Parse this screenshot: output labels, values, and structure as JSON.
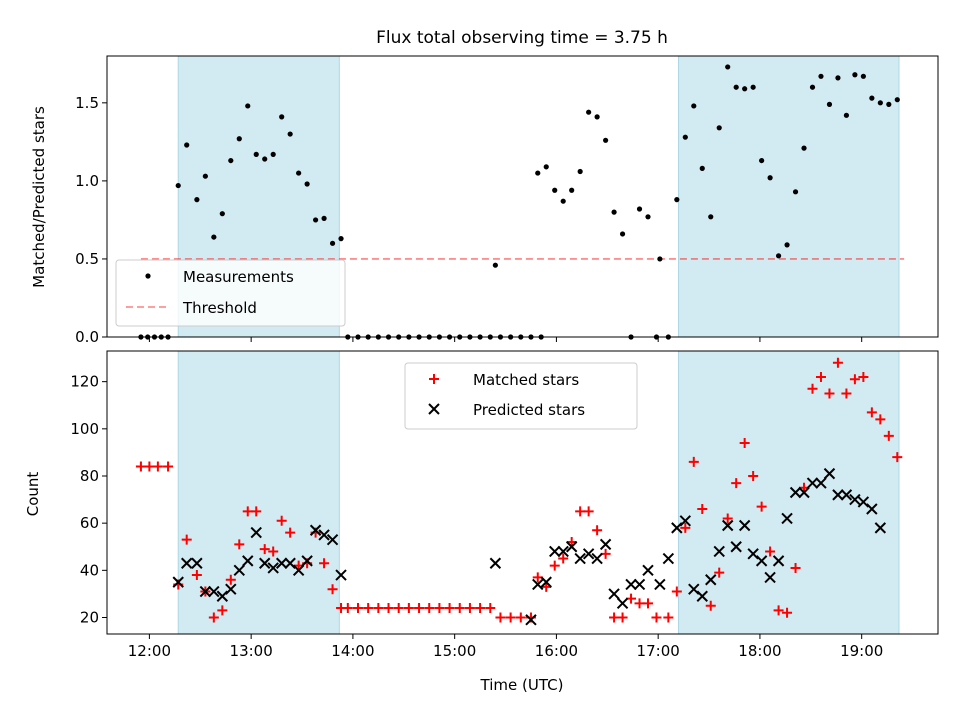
{
  "figure": {
    "title": "Flux total observing time = 3.75 h",
    "xlabel": "Time (UTC)"
  },
  "colors": {
    "shade": "#add8e6",
    "measurement": "#000000",
    "threshold": "#ff0000",
    "matched": "#ff0000",
    "predicted": "#000000",
    "axes": "#000000"
  },
  "chart_data": [
    {
      "type": "scatter",
      "ylabel": "Matched/Predicted stars",
      "ylim": [
        0,
        1.8
      ],
      "xlim": [
        "11:35",
        "19:45"
      ],
      "yticks": [
        0.0,
        0.5,
        1.0,
        1.5
      ],
      "ytick_labels": [
        "0.0",
        "0.5",
        "1.0",
        "1.5"
      ],
      "shaded_intervals": [
        [
          "12:17",
          "13:52"
        ],
        [
          "17:12",
          "19:22"
        ]
      ],
      "legend": {
        "placement": "lower-left",
        "entries": [
          "Measurements",
          "Threshold"
        ]
      },
      "threshold": {
        "name": "Threshold",
        "value": 0.5,
        "x_range": [
          "11:55",
          "19:25"
        ]
      },
      "series": [
        {
          "name": "Measurements",
          "points": [
            [
              "11:55",
              0
            ],
            [
              "11:59",
              0
            ],
            [
              "12:03",
              0
            ],
            [
              "12:07",
              0
            ],
            [
              "12:11",
              0
            ],
            [
              "12:17",
              0.97
            ],
            [
              "12:22",
              1.23
            ],
            [
              "12:28",
              0.88
            ],
            [
              "12:33",
              1.03
            ],
            [
              "12:38",
              0.64
            ],
            [
              "12:43",
              0.79
            ],
            [
              "12:48",
              1.13
            ],
            [
              "12:53",
              1.27
            ],
            [
              "12:58",
              1.48
            ],
            [
              "13:03",
              1.17
            ],
            [
              "13:08",
              1.14
            ],
            [
              "13:13",
              1.17
            ],
            [
              "13:18",
              1.41
            ],
            [
              "13:23",
              1.3
            ],
            [
              "13:28",
              1.05
            ],
            [
              "13:33",
              0.98
            ],
            [
              "13:38",
              0.75
            ],
            [
              "13:43",
              0.76
            ],
            [
              "13:48",
              0.6
            ],
            [
              "13:53",
              0.63
            ],
            [
              "13:57",
              0
            ],
            [
              "14:03",
              0
            ],
            [
              "14:09",
              0
            ],
            [
              "14:15",
              0
            ],
            [
              "14:21",
              0
            ],
            [
              "14:27",
              0
            ],
            [
              "14:33",
              0
            ],
            [
              "14:39",
              0
            ],
            [
              "14:45",
              0
            ],
            [
              "14:51",
              0
            ],
            [
              "14:57",
              0
            ],
            [
              "15:03",
              0
            ],
            [
              "15:09",
              0
            ],
            [
              "15:15",
              0
            ],
            [
              "15:21",
              0
            ],
            [
              "15:27",
              0
            ],
            [
              "15:33",
              0
            ],
            [
              "15:39",
              0
            ],
            [
              "15:45",
              0
            ],
            [
              "15:51",
              0
            ],
            [
              "15:24",
              0.46
            ],
            [
              "15:49",
              1.05
            ],
            [
              "15:54",
              1.09
            ],
            [
              "15:59",
              0.94
            ],
            [
              "16:04",
              0.87
            ],
            [
              "16:09",
              0.94
            ],
            [
              "16:14",
              1.06
            ],
            [
              "16:19",
              1.44
            ],
            [
              "16:24",
              1.41
            ],
            [
              "16:29",
              1.26
            ],
            [
              "16:34",
              0.8
            ],
            [
              "16:39",
              0.66
            ],
            [
              "16:44",
              0
            ],
            [
              "16:49",
              0.82
            ],
            [
              "16:54",
              0.77
            ],
            [
              "16:59",
              0
            ],
            [
              "17:01",
              0.5
            ],
            [
              "17:06",
              0
            ],
            [
              "17:11",
              0.88
            ],
            [
              "17:16",
              1.28
            ],
            [
              "17:21",
              1.48
            ],
            [
              "17:26",
              1.08
            ],
            [
              "17:31",
              0.77
            ],
            [
              "17:36",
              1.34
            ],
            [
              "17:41",
              1.73
            ],
            [
              "17:46",
              1.6
            ],
            [
              "17:51",
              1.59
            ],
            [
              "17:56",
              1.6
            ],
            [
              "18:01",
              1.13
            ],
            [
              "18:06",
              1.02
            ],
            [
              "18:11",
              0.52
            ],
            [
              "18:16",
              0.59
            ],
            [
              "18:21",
              0.93
            ],
            [
              "18:26",
              1.21
            ],
            [
              "18:31",
              1.6
            ],
            [
              "18:36",
              1.67
            ],
            [
              "18:41",
              1.49
            ],
            [
              "18:46",
              1.66
            ],
            [
              "18:51",
              1.42
            ],
            [
              "18:56",
              1.68
            ],
            [
              "19:01",
              1.67
            ],
            [
              "19:06",
              1.53
            ],
            [
              "19:11",
              1.5
            ],
            [
              "19:16",
              1.49
            ],
            [
              "19:21",
              1.52
            ]
          ]
        }
      ]
    },
    {
      "type": "scatter",
      "ylabel": "Count",
      "xlabel": "Time (UTC)",
      "ylim": [
        13,
        133
      ],
      "xlim": [
        "11:35",
        "19:45"
      ],
      "yticks": [
        20,
        40,
        60,
        80,
        100,
        120
      ],
      "ytick_labels": [
        "20",
        "40",
        "60",
        "80",
        "100",
        "120"
      ],
      "xticks": [
        "12:00",
        "13:00",
        "14:00",
        "15:00",
        "16:00",
        "17:00",
        "18:00",
        "19:00"
      ],
      "xtick_labels": [
        "12:00",
        "13:00",
        "14:00",
        "15:00",
        "16:00",
        "17:00",
        "18:00",
        "19:00"
      ],
      "shaded_intervals": [
        [
          "12:17",
          "13:52"
        ],
        [
          "17:12",
          "19:22"
        ]
      ],
      "legend": {
        "placement": "upper-center",
        "entries": [
          "Matched stars",
          "Predicted stars"
        ]
      },
      "series": [
        {
          "name": "Matched stars",
          "marker": "+",
          "points": [
            [
              "11:55",
              84
            ],
            [
              "12:00",
              84
            ],
            [
              "12:05",
              84
            ],
            [
              "12:11",
              84
            ],
            [
              "12:17",
              34
            ],
            [
              "12:22",
              53
            ],
            [
              "12:28",
              38
            ],
            [
              "12:33",
              31
            ],
            [
              "12:38",
              20
            ],
            [
              "12:43",
              23
            ],
            [
              "12:48",
              36
            ],
            [
              "12:53",
              51
            ],
            [
              "12:58",
              65
            ],
            [
              "13:03",
              65
            ],
            [
              "13:08",
              49
            ],
            [
              "13:13",
              48
            ],
            [
              "13:18",
              61
            ],
            [
              "13:23",
              56
            ],
            [
              "13:28",
              42
            ],
            [
              "13:33",
              43
            ],
            [
              "13:38",
              56
            ],
            [
              "13:43",
              43
            ],
            [
              "13:48",
              32
            ],
            [
              "13:53",
              24
            ],
            [
              "13:57",
              24
            ],
            [
              "14:03",
              24
            ],
            [
              "14:09",
              24
            ],
            [
              "14:15",
              24
            ],
            [
              "14:21",
              24
            ],
            [
              "14:27",
              24
            ],
            [
              "14:33",
              24
            ],
            [
              "14:39",
              24
            ],
            [
              "14:45",
              24
            ],
            [
              "14:51",
              24
            ],
            [
              "14:57",
              24
            ],
            [
              "15:03",
              24
            ],
            [
              "15:09",
              24
            ],
            [
              "15:15",
              24
            ],
            [
              "15:21",
              24
            ],
            [
              "15:27",
              20
            ],
            [
              "15:33",
              20
            ],
            [
              "15:39",
              20
            ],
            [
              "15:45",
              20
            ],
            [
              "15:49",
              37
            ],
            [
              "15:54",
              33
            ],
            [
              "15:59",
              42
            ],
            [
              "16:04",
              45
            ],
            [
              "16:09",
              52
            ],
            [
              "16:14",
              65
            ],
            [
              "16:19",
              65
            ],
            [
              "16:24",
              57
            ],
            [
              "16:29",
              47
            ],
            [
              "16:34",
              20
            ],
            [
              "16:39",
              20
            ],
            [
              "16:44",
              28
            ],
            [
              "16:49",
              26
            ],
            [
              "16:54",
              26
            ],
            [
              "16:59",
              20
            ],
            [
              "17:06",
              20
            ],
            [
              "17:11",
              31
            ],
            [
              "17:16",
              58
            ],
            [
              "17:21",
              86
            ],
            [
              "17:26",
              66
            ],
            [
              "17:31",
              25
            ],
            [
              "17:36",
              39
            ],
            [
              "17:41",
              62
            ],
            [
              "17:46",
              77
            ],
            [
              "17:51",
              94
            ],
            [
              "17:56",
              80
            ],
            [
              "18:01",
              67
            ],
            [
              "18:06",
              48
            ],
            [
              "18:11",
              23
            ],
            [
              "18:16",
              22
            ],
            [
              "18:21",
              41
            ],
            [
              "18:26",
              75
            ],
            [
              "18:31",
              117
            ],
            [
              "18:36",
              122
            ],
            [
              "18:41",
              115
            ],
            [
              "18:46",
              128
            ],
            [
              "18:51",
              115
            ],
            [
              "18:56",
              121
            ],
            [
              "19:01",
              122
            ],
            [
              "19:06",
              107
            ],
            [
              "19:11",
              104
            ],
            [
              "19:16",
              97
            ],
            [
              "19:21",
              88
            ]
          ]
        },
        {
          "name": "Predicted stars",
          "marker": "x",
          "points": [
            [
              "12:17",
              35
            ],
            [
              "12:22",
              43
            ],
            [
              "12:28",
              43
            ],
            [
              "12:33",
              31
            ],
            [
              "12:38",
              31
            ],
            [
              "12:43",
              29
            ],
            [
              "12:48",
              32
            ],
            [
              "12:53",
              40
            ],
            [
              "12:58",
              44
            ],
            [
              "13:03",
              56
            ],
            [
              "13:08",
              43
            ],
            [
              "13:13",
              41
            ],
            [
              "13:18",
              43
            ],
            [
              "13:23",
              43
            ],
            [
              "13:28",
              40
            ],
            [
              "13:33",
              44
            ],
            [
              "13:38",
              57
            ],
            [
              "13:43",
              55
            ],
            [
              "13:48",
              53
            ],
            [
              "13:53",
              38
            ],
            [
              "15:24",
              43
            ],
            [
              "15:45",
              19
            ],
            [
              "15:49",
              34
            ],
            [
              "15:54",
              35
            ],
            [
              "15:59",
              48
            ],
            [
              "16:04",
              48
            ],
            [
              "16:09",
              50
            ],
            [
              "16:14",
              45
            ],
            [
              "16:19",
              47
            ],
            [
              "16:24",
              45
            ],
            [
              "16:29",
              51
            ],
            [
              "16:34",
              30
            ],
            [
              "16:39",
              26
            ],
            [
              "16:44",
              34
            ],
            [
              "16:49",
              34
            ],
            [
              "16:54",
              40
            ],
            [
              "17:01",
              34
            ],
            [
              "17:06",
              45
            ],
            [
              "17:11",
              58
            ],
            [
              "17:16",
              61
            ],
            [
              "17:21",
              32
            ],
            [
              "17:26",
              29
            ],
            [
              "17:31",
              36
            ],
            [
              "17:36",
              48
            ],
            [
              "17:41",
              59
            ],
            [
              "17:46",
              50
            ],
            [
              "17:51",
              59
            ],
            [
              "17:56",
              47
            ],
            [
              "18:01",
              44
            ],
            [
              "18:06",
              37
            ],
            [
              "18:11",
              44
            ],
            [
              "18:16",
              62
            ],
            [
              "18:21",
              73
            ],
            [
              "18:26",
              73
            ],
            [
              "18:31",
              77
            ],
            [
              "18:36",
              77
            ],
            [
              "18:41",
              81
            ],
            [
              "18:46",
              72
            ],
            [
              "18:51",
              72
            ],
            [
              "18:56",
              70
            ],
            [
              "19:01",
              69
            ],
            [
              "19:06",
              66
            ],
            [
              "19:11",
              58
            ]
          ]
        }
      ]
    }
  ]
}
